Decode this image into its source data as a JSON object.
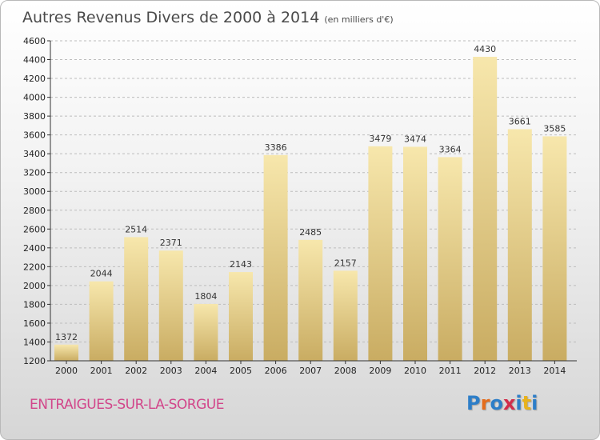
{
  "title": "Autres Revenus Divers de 2000 à 2014",
  "unit": "(en milliers d'€)",
  "commune": "ENTRAIGUES-SUR-LA-SORGUE",
  "logo": {
    "letters": [
      "P",
      "r",
      "o",
      "x",
      "i",
      "t",
      "i"
    ],
    "colors": [
      "#2d7ec8",
      "#e46c1c",
      "#2d7ec8",
      "#d12d4b",
      "#2d7ec8",
      "#e8b21c",
      "#2d7ec8"
    ]
  },
  "colors": {
    "bar_top": "#f7e7ac",
    "bar_bottom": "#c9ac62",
    "grid": "#bdbdbd",
    "axis": "#333333"
  },
  "chart_data": {
    "type": "bar",
    "title": "Autres Revenus Divers de 2000 à 2014",
    "subtitle": "(en milliers d'€)",
    "categories": [
      "2000",
      "2001",
      "2002",
      "2003",
      "2004",
      "2005",
      "2006",
      "2007",
      "2008",
      "2009",
      "2010",
      "2011",
      "2012",
      "2013",
      "2014"
    ],
    "values": [
      1372,
      2044,
      2514,
      2371,
      1804,
      2143,
      3386,
      2485,
      2157,
      3479,
      3474,
      3364,
      4430,
      3661,
      3585
    ],
    "xlabel": "",
    "ylabel": "",
    "ylim": [
      1200,
      4600
    ],
    "yticks": [
      1200,
      1400,
      1600,
      1800,
      2000,
      2200,
      2400,
      2600,
      2800,
      3000,
      3200,
      3400,
      3600,
      3800,
      4000,
      4200,
      4400,
      4600
    ],
    "grid": true,
    "data_labels": true
  }
}
